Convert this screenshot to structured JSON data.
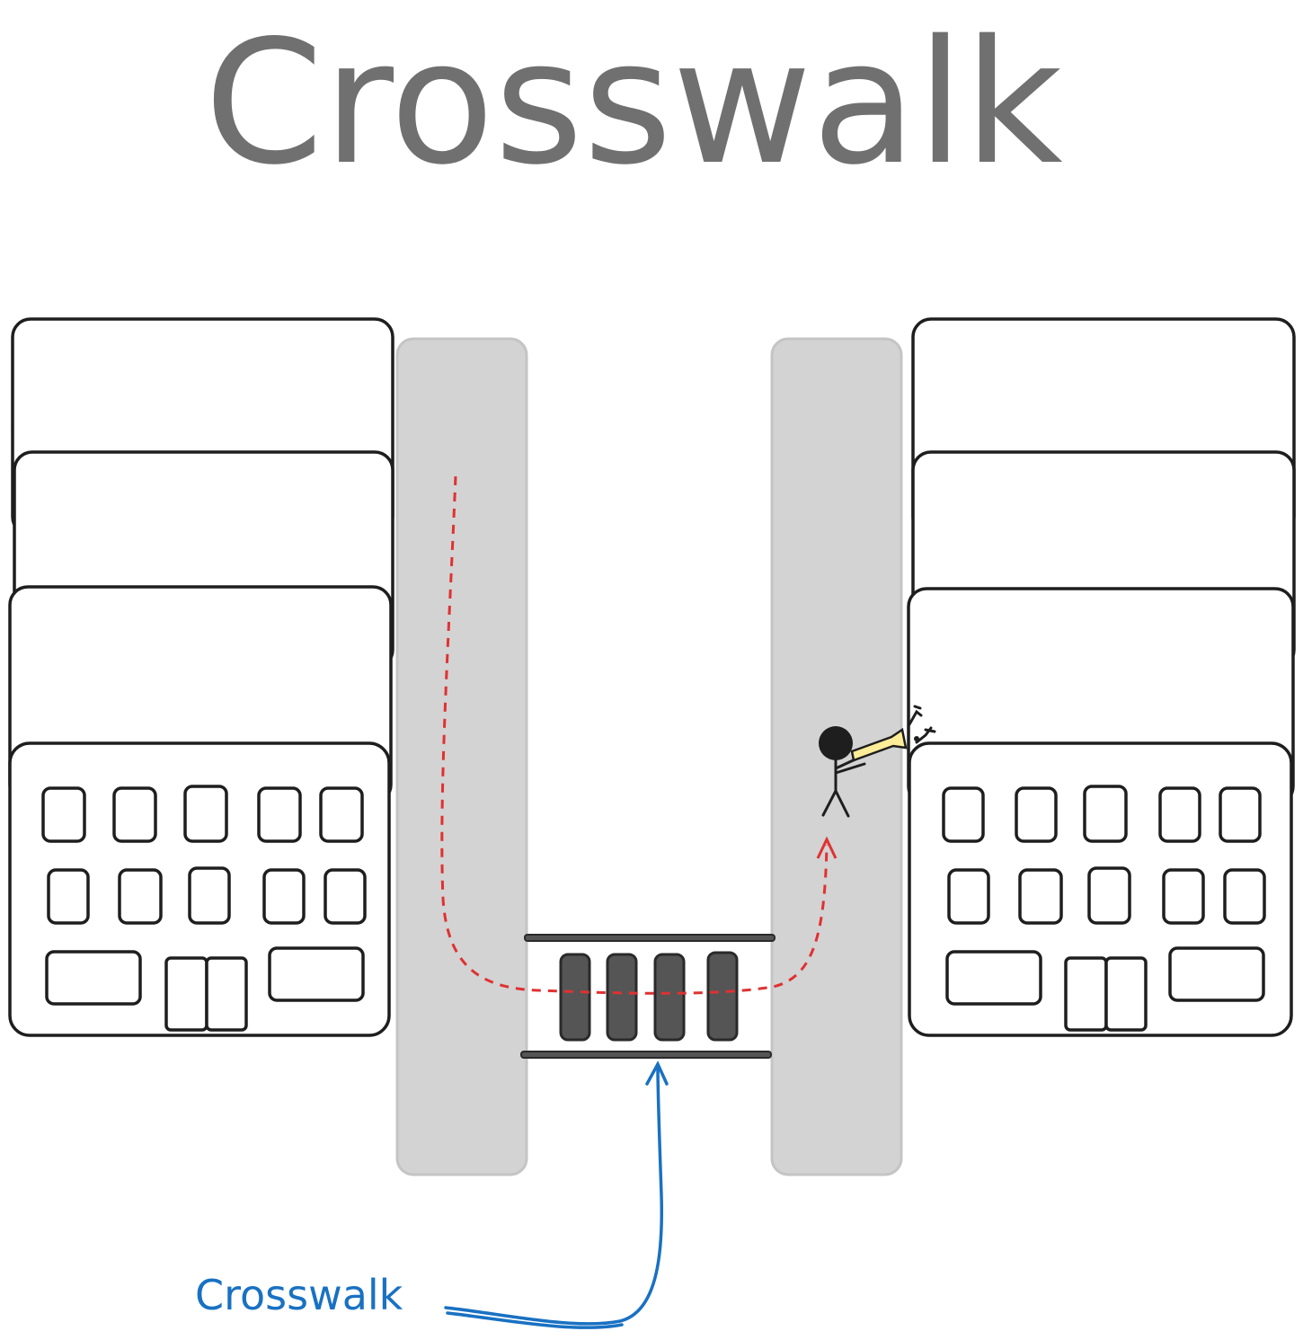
{
  "title": "Crosswalk",
  "label": "Crosswalk",
  "colors": {
    "title": "#707070",
    "label": "#1971c2",
    "path": "#e03131",
    "sidewalk": "#d3d3d3",
    "stripes": "#555555",
    "ink": "#1e1e1e",
    "trumpet": "#ffec99"
  },
  "icons": {
    "left_building": "building-icon",
    "right_building": "building-icon",
    "person": "trumpet-player-icon",
    "notes": "music-notes-icon"
  }
}
